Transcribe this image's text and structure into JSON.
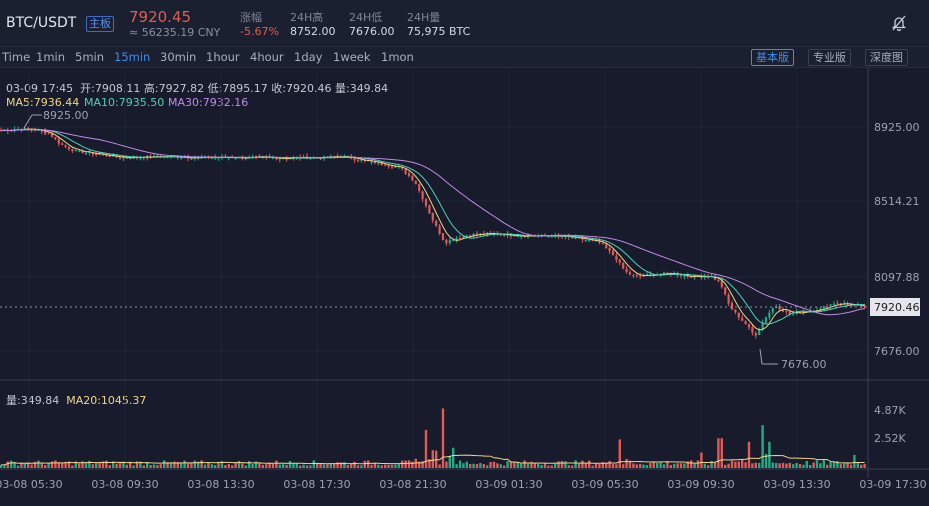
{
  "header": {
    "pair": "BTC/USDT",
    "badge": "主板",
    "price": "7920.45",
    "cny": "≈ 56235.19 CNY",
    "stats": [
      {
        "k": "涨幅",
        "v": "-5.67%",
        "red": true
      },
      {
        "k": "24H高",
        "v": "8752.00"
      },
      {
        "k": "24H低",
        "v": "7676.00"
      },
      {
        "k": "24H量",
        "v": "75,975 BTC"
      }
    ]
  },
  "toolbar": {
    "intervals": [
      "Time",
      "1min",
      "5min",
      "15min",
      "30min",
      "1hour",
      "4hour",
      "1day",
      "1week",
      "1mon"
    ],
    "active_index": 3,
    "versions": [
      "基本版",
      "专业版",
      "深度图"
    ],
    "active_version": 0
  },
  "info": {
    "time": "03-09 17:45",
    "open": "开:7908.11",
    "high": "高:7927.82",
    "low": "低:7895.17",
    "close": "收:7920.46",
    "vol": "量:349.84",
    "ma5": "MA5:7936.44",
    "ma10": "MA10:7935.50",
    "ma30": "MA30:7932.16",
    "vol_line": "量:349.84",
    "ma20": "MA20:1045.37"
  },
  "colors": {
    "up": "#1fae83",
    "down": "#e05a56",
    "ma5": "#f0d688",
    "ma10": "#4fd1b5",
    "ma30": "#c28ae8",
    "accent": "#3f8be8"
  },
  "chart_data": {
    "type": "candlestick",
    "price_axis": [
      "8925.00",
      "8514.21",
      "8097.88",
      "7676.00"
    ],
    "last_price_label": "7920.46",
    "volume_axis": [
      "4.87K",
      "2.52K"
    ],
    "x_ticks": [
      "03-08 05:30",
      "03-08 09:30",
      "03-08 13:30",
      "03-08 17:30",
      "03-08 21:30",
      "03-09 01:30",
      "03-09 05:30",
      "03-09 09:30",
      "03-09 13:30",
      "03-09 17:30"
    ],
    "max_marker": "8925.00",
    "min_marker": "7676.00",
    "close_path": [
      [
        0,
        8905
      ],
      [
        20,
        8915
      ],
      [
        35,
        8910
      ],
      [
        50,
        8885
      ],
      [
        60,
        8830
      ],
      [
        75,
        8790
      ],
      [
        95,
        8775
      ],
      [
        120,
        8755
      ],
      [
        160,
        8760
      ],
      [
        200,
        8755
      ],
      [
        240,
        8755
      ],
      [
        280,
        8752
      ],
      [
        320,
        8755
      ],
      [
        345,
        8760
      ],
      [
        360,
        8740
      ],
      [
        380,
        8720
      ],
      [
        400,
        8700
      ],
      [
        415,
        8620
      ],
      [
        425,
        8500
      ],
      [
        435,
        8380
      ],
      [
        445,
        8280
      ],
      [
        455,
        8305
      ],
      [
        470,
        8325
      ],
      [
        490,
        8330
      ],
      [
        520,
        8320
      ],
      [
        560,
        8315
      ],
      [
        580,
        8300
      ],
      [
        600,
        8280
      ],
      [
        615,
        8200
      ],
      [
        625,
        8120
      ],
      [
        635,
        8090
      ],
      [
        650,
        8100
      ],
      [
        670,
        8110
      ],
      [
        690,
        8090
      ],
      [
        710,
        8095
      ],
      [
        720,
        8060
      ],
      [
        730,
        7920
      ],
      [
        745,
        7830
      ],
      [
        755,
        7760
      ],
      [
        765,
        7860
      ],
      [
        775,
        7930
      ],
      [
        790,
        7880
      ],
      [
        805,
        7900
      ],
      [
        820,
        7910
      ],
      [
        835,
        7945
      ],
      [
        850,
        7935
      ],
      [
        865,
        7920
      ]
    ],
    "volume_spikes": [
      [
        425,
        3.2
      ],
      [
        442,
        5.0
      ],
      [
        452,
        1.7
      ],
      [
        620,
        2.4
      ],
      [
        700,
        1.3
      ],
      [
        720,
        2.5
      ],
      [
        750,
        2.2
      ],
      [
        762,
        3.6
      ],
      [
        769,
        2.2
      ],
      [
        855,
        1.1
      ]
    ]
  }
}
